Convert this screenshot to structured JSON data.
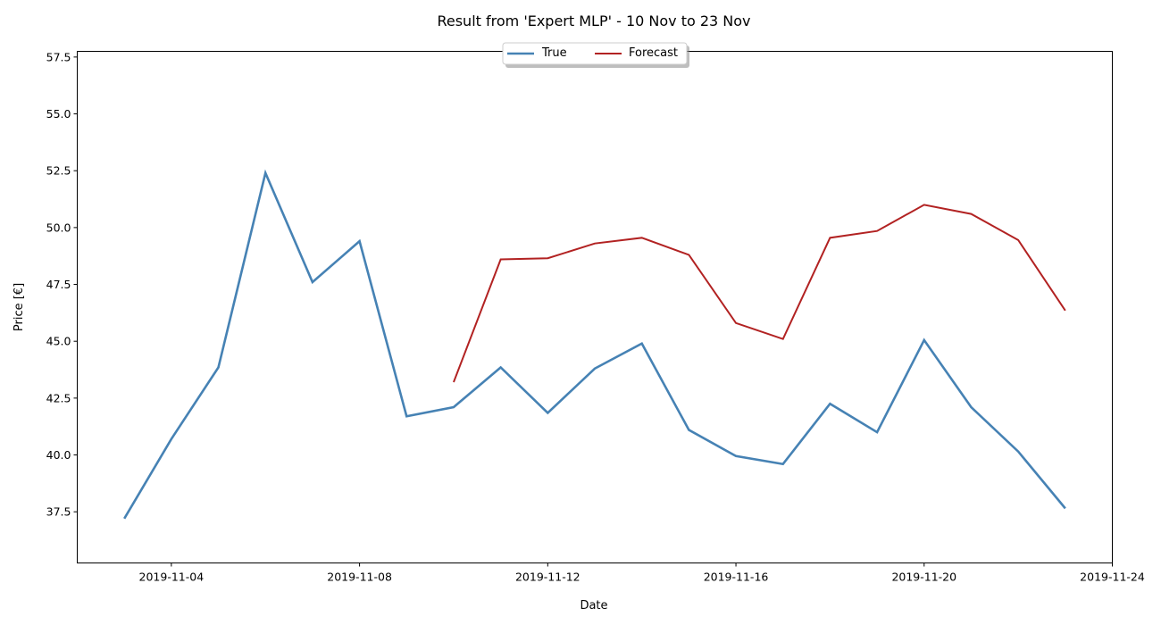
{
  "chart_data": {
    "type": "line",
    "title": "Result from 'Expert MLP' - 10 Nov to 23 Nov",
    "xlabel": "Date",
    "ylabel": "Price [€]",
    "xlim": [
      "2019-11-02",
      "2019-11-24"
    ],
    "ylim": [
      35.25,
      57.75
    ],
    "x_ticks": [
      "2019-11-04",
      "2019-11-08",
      "2019-11-12",
      "2019-11-16",
      "2019-11-20",
      "2019-11-24"
    ],
    "y_ticks": [
      "37.5",
      "40.0",
      "42.5",
      "45.0",
      "47.5",
      "50.0",
      "52.5",
      "55.0",
      "57.5"
    ],
    "legend_position": "top-center",
    "grid": false,
    "series": [
      {
        "name": "True",
        "color": "#4682b4",
        "x": [
          "2019-11-03",
          "2019-11-04",
          "2019-11-05",
          "2019-11-06",
          "2019-11-07",
          "2019-11-08",
          "2019-11-09",
          "2019-11-10",
          "2019-11-11",
          "2019-11-12",
          "2019-11-13",
          "2019-11-14",
          "2019-11-15",
          "2019-11-16",
          "2019-11-17",
          "2019-11-18",
          "2019-11-19",
          "2019-11-20",
          "2019-11-21",
          "2019-11-22",
          "2019-11-23"
        ],
        "values": [
          37.2,
          40.7,
          43.85,
          52.4,
          47.6,
          49.4,
          41.7,
          42.1,
          43.85,
          41.85,
          43.8,
          44.9,
          41.1,
          39.95,
          39.6,
          42.25,
          41.0,
          45.05,
          42.1,
          40.15,
          37.65
        ]
      },
      {
        "name": "Forecast",
        "color": "#b22222",
        "x": [
          "2019-11-10",
          "2019-11-11",
          "2019-11-12",
          "2019-11-13",
          "2019-11-14",
          "2019-11-15",
          "2019-11-16",
          "2019-11-17",
          "2019-11-18",
          "2019-11-19",
          "2019-11-20",
          "2019-11-21",
          "2019-11-22",
          "2019-11-23"
        ],
        "values": [
          43.2,
          48.6,
          48.65,
          49.3,
          49.55,
          48.8,
          45.8,
          45.1,
          49.55,
          49.85,
          51.0,
          50.6,
          49.45,
          46.35
        ]
      }
    ]
  }
}
